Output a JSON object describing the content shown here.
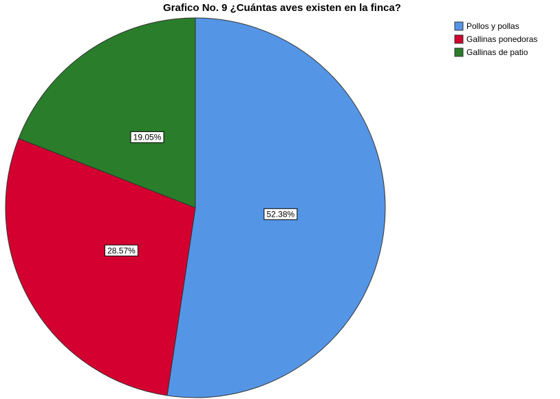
{
  "chart_data": {
    "type": "pie",
    "title": "Grafico No. 9 ¿Cuántas aves existen en la finca?",
    "categories": [
      "Pollos y pollas",
      "Gallinas ponedoras",
      "Gallinas de patio"
    ],
    "values": [
      52.38,
      28.57,
      19.05
    ],
    "value_labels": [
      "52.38%",
      "28.57%",
      "19.05%"
    ],
    "colors": [
      "#5595e6",
      "#d30030",
      "#2a7d2a"
    ],
    "legend": "upper right"
  }
}
